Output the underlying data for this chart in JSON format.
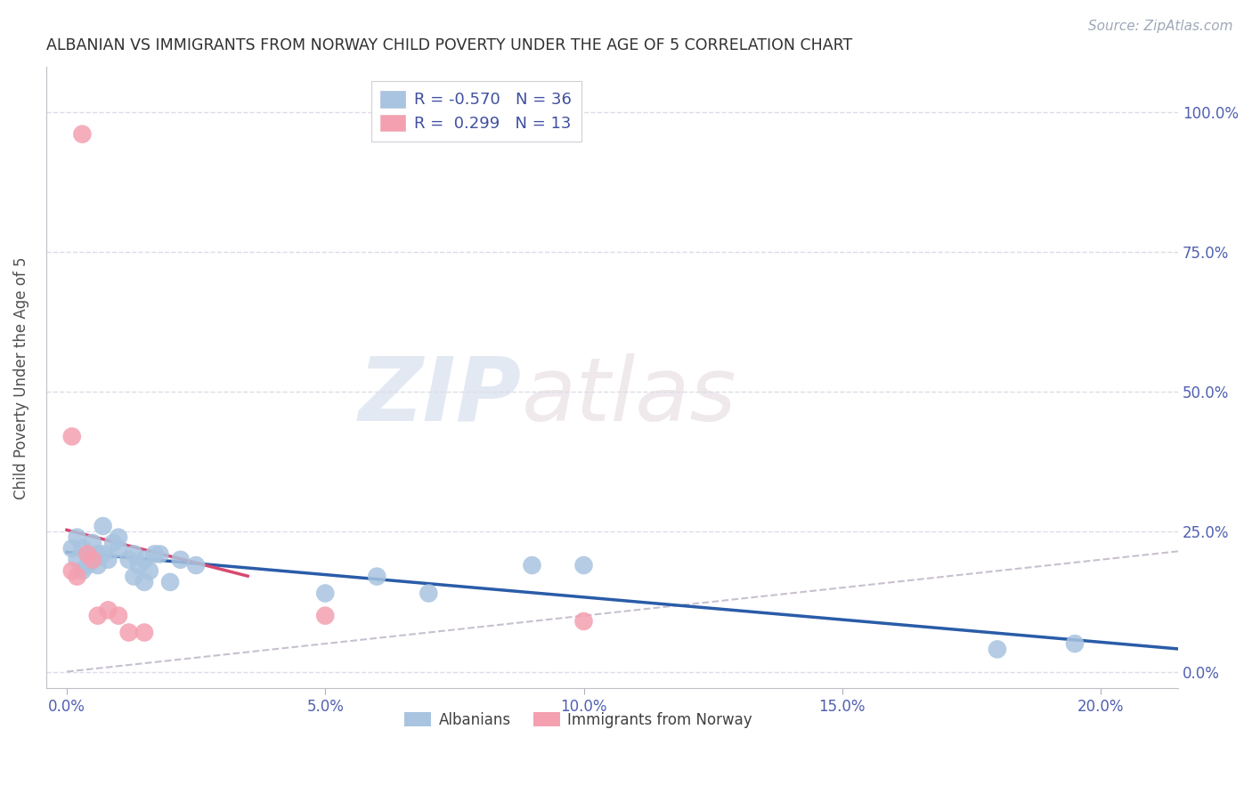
{
  "title": "ALBANIAN VS IMMIGRANTS FROM NORWAY CHILD POVERTY UNDER THE AGE OF 5 CORRELATION CHART",
  "source": "Source: ZipAtlas.com",
  "xlabel_ticks": [
    "0.0%",
    "5.0%",
    "10.0%",
    "15.0%",
    "20.0%"
  ],
  "xlabel_tick_vals": [
    0.0,
    0.05,
    0.1,
    0.15,
    0.2
  ],
  "ylabel": "Child Poverty Under the Age of 5",
  "ylabel_ticks": [
    "0.0%",
    "25.0%",
    "50.0%",
    "75.0%",
    "100.0%"
  ],
  "ylabel_tick_vals": [
    0.0,
    0.25,
    0.5,
    0.75,
    1.0
  ],
  "xlim": [
    -0.004,
    0.215
  ],
  "ylim": [
    -0.03,
    1.08
  ],
  "R_blue": -0.57,
  "N_blue": 36,
  "R_pink": 0.299,
  "N_pink": 13,
  "blue_color": "#a8c4e0",
  "pink_color": "#f4a0b0",
  "blue_line_color": "#2a5ca8",
  "pink_line_color": "#d84870",
  "diagonal_color": "#c8c0d0",
  "grid_color": "#dcdce8",
  "legend_label_blue": "Albanians",
  "legend_label_pink": "Immigrants from Norway",
  "watermark_zip": "ZIP",
  "watermark_atlas": "atlas",
  "blue_x": [
    0.001,
    0.002,
    0.002,
    0.003,
    0.003,
    0.004,
    0.004,
    0.005,
    0.005,
    0.006,
    0.006,
    0.007,
    0.007,
    0.008,
    0.009,
    0.01,
    0.01,
    0.012,
    0.013,
    0.013,
    0.014,
    0.015,
    0.015,
    0.016,
    0.017,
    0.018,
    0.02,
    0.022,
    0.025,
    0.05,
    0.06,
    0.07,
    0.09,
    0.1,
    0.18,
    0.195
  ],
  "blue_y": [
    0.22,
    0.2,
    0.24,
    0.18,
    0.22,
    0.21,
    0.19,
    0.23,
    0.2,
    0.19,
    0.21,
    0.26,
    0.21,
    0.2,
    0.23,
    0.22,
    0.24,
    0.2,
    0.21,
    0.17,
    0.19,
    0.16,
    0.2,
    0.18,
    0.21,
    0.21,
    0.16,
    0.2,
    0.19,
    0.14,
    0.17,
    0.14,
    0.19,
    0.19,
    0.04,
    0.05
  ],
  "pink_x": [
    0.001,
    0.001,
    0.002,
    0.003,
    0.004,
    0.005,
    0.006,
    0.008,
    0.01,
    0.012,
    0.015,
    0.05,
    0.1
  ],
  "pink_y": [
    0.18,
    0.42,
    0.17,
    0.96,
    0.21,
    0.2,
    0.1,
    0.11,
    0.1,
    0.07,
    0.07,
    0.1,
    0.09
  ]
}
